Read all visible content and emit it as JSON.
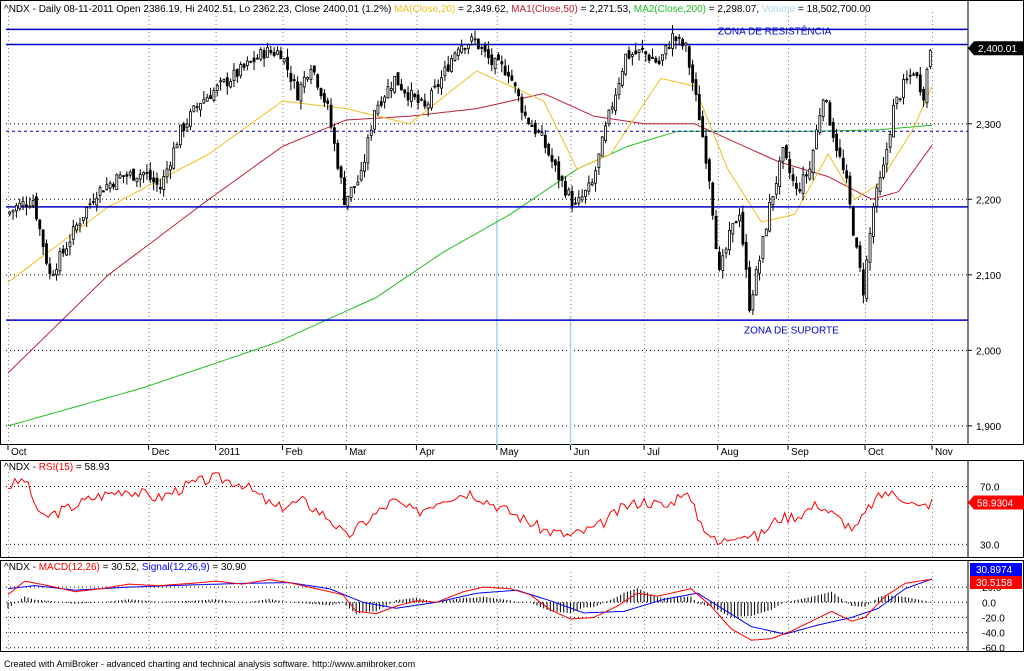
{
  "app": {
    "footer": "Created with AmiBroker - advanced charting and technical analysis software. http://www.amibroker.com"
  },
  "colors": {
    "bg": "#ffffff",
    "border": "#000000",
    "grid": "#000000",
    "vgrid": "#808080",
    "candle_up": "#ffffff",
    "candle_down": "#000000",
    "ma20": "#f0c020",
    "ma50": "#c0203a",
    "ma200": "#20c020",
    "volume": "#a8d8f0",
    "hline": "#0000cc",
    "rsi": "#ff0000",
    "macd": "#ff0000",
    "signal": "#0000ff",
    "hist": "#000000",
    "label_dark": "#000000",
    "label_red": "#ff0000",
    "label_blue": "#0000ff"
  },
  "chart_data": [
    {
      "type": "candlestick",
      "name": "price",
      "title_parts": [
        {
          "text": "^NDX - Daily 08-11-2011 Open 2386.19, Hi 2402.51, Lo 2362.23, Close 2400.01 (1.2%) ",
          "color": "label_dark"
        },
        {
          "text": "MA(Close,20)",
          "color": "ma20"
        },
        {
          "text": " = 2,349.62, ",
          "color": "label_dark"
        },
        {
          "text": "MA1(Close,50)",
          "color": "ma50"
        },
        {
          "text": " = 2,271.53, ",
          "color": "label_dark"
        },
        {
          "text": "MA2(Close,200)",
          "color": "ma200"
        },
        {
          "text": " = 2,298.07, ",
          "color": "label_dark"
        },
        {
          "text": "Volume",
          "color": "volume"
        },
        {
          "text": " = 18,502,700.00",
          "color": "label_dark"
        }
      ],
      "ylim": [
        1880,
        2440
      ],
      "y_ticks": [
        "2,300",
        "2,200",
        "2,100",
        "2,000",
        "1,900"
      ],
      "y_tick_values": [
        2300,
        2200,
        2100,
        2000,
        1900
      ],
      "last_value_label": "2,400.01",
      "last_value": 2400.01,
      "x_labels": [
        "Oct",
        "Dec",
        "2011",
        "Feb",
        "Mar",
        "Apr",
        "May",
        "Jun",
        "Jul",
        "Aug",
        "Sep",
        "Oct",
        "Nov"
      ],
      "x_label_bars": [
        0,
        42,
        62,
        82,
        101,
        122,
        146,
        168,
        190,
        212,
        233,
        256,
        276
      ],
      "bar_count": 276,
      "anchors": [
        [
          0,
          2180
        ],
        [
          3,
          2190
        ],
        [
          8,
          2200
        ],
        [
          13,
          2100
        ],
        [
          17,
          2130
        ],
        [
          21,
          2165
        ],
        [
          27,
          2210
        ],
        [
          34,
          2230
        ],
        [
          41,
          2235
        ],
        [
          46,
          2215
        ],
        [
          52,
          2290
        ],
        [
          58,
          2330
        ],
        [
          64,
          2350
        ],
        [
          70,
          2370
        ],
        [
          77,
          2395
        ],
        [
          82,
          2395
        ],
        [
          87,
          2340
        ],
        [
          91,
          2380
        ],
        [
          96,
          2320
        ],
        [
          101,
          2200
        ],
        [
          106,
          2230
        ],
        [
          110,
          2320
        ],
        [
          116,
          2360
        ],
        [
          120,
          2340
        ],
        [
          125,
          2320
        ],
        [
          130,
          2360
        ],
        [
          135,
          2405
        ],
        [
          140,
          2410
        ],
        [
          145,
          2380
        ],
        [
          150,
          2370
        ],
        [
          155,
          2310
        ],
        [
          160,
          2280
        ],
        [
          165,
          2230
        ],
        [
          170,
          2190
        ],
        [
          175,
          2220
        ],
        [
          180,
          2310
        ],
        [
          185,
          2390
        ],
        [
          190,
          2395
        ],
        [
          195,
          2380
        ],
        [
          199,
          2415
        ],
        [
          203,
          2400
        ],
        [
          207,
          2310
        ],
        [
          210,
          2230
        ],
        [
          213,
          2100
        ],
        [
          216,
          2150
        ],
        [
          219,
          2185
        ],
        [
          222,
          2060
        ],
        [
          225,
          2120
        ],
        [
          228,
          2190
        ],
        [
          232,
          2260
        ],
        [
          236,
          2210
        ],
        [
          240,
          2240
        ],
        [
          244,
          2340
        ],
        [
          248,
          2270
        ],
        [
          251,
          2220
        ],
        [
          254,
          2130
        ],
        [
          256,
          2080
        ],
        [
          259,
          2190
        ],
        [
          262,
          2240
        ],
        [
          265,
          2320
        ],
        [
          268,
          2350
        ],
        [
          271,
          2370
        ],
        [
          274,
          2340
        ],
        [
          276,
          2400
        ]
      ],
      "ma20_anchors": [
        [
          0,
          2090
        ],
        [
          30,
          2190
        ],
        [
          60,
          2260
        ],
        [
          82,
          2330
        ],
        [
          101,
          2320
        ],
        [
          120,
          2300
        ],
        [
          140,
          2370
        ],
        [
          160,
          2330
        ],
        [
          170,
          2240
        ],
        [
          180,
          2260
        ],
        [
          195,
          2360
        ],
        [
          205,
          2350
        ],
        [
          215,
          2240
        ],
        [
          225,
          2170
        ],
        [
          235,
          2180
        ],
        [
          245,
          2260
        ],
        [
          253,
          2200
        ],
        [
          260,
          2220
        ],
        [
          270,
          2290
        ],
        [
          276,
          2349.62
        ]
      ],
      "ma50_anchors": [
        [
          0,
          1970
        ],
        [
          30,
          2100
        ],
        [
          60,
          2200
        ],
        [
          82,
          2270
        ],
        [
          101,
          2305
        ],
        [
          120,
          2310
        ],
        [
          140,
          2320
        ],
        [
          160,
          2340
        ],
        [
          175,
          2310
        ],
        [
          190,
          2300
        ],
        [
          205,
          2300
        ],
        [
          215,
          2280
        ],
        [
          230,
          2250
        ],
        [
          245,
          2230
        ],
        [
          258,
          2200
        ],
        [
          266,
          2210
        ],
        [
          276,
          2271.53
        ]
      ],
      "ma200_anchors": [
        [
          0,
          1900
        ],
        [
          40,
          1950
        ],
        [
          80,
          2010
        ],
        [
          110,
          2070
        ],
        [
          130,
          2130
        ],
        [
          150,
          2180
        ],
        [
          170,
          2240
        ],
        [
          185,
          2270
        ],
        [
          200,
          2290
        ],
        [
          220,
          2290
        ],
        [
          240,
          2290
        ],
        [
          260,
          2292
        ],
        [
          276,
          2298.07
        ]
      ],
      "horizontal_lines": [
        2425,
        2405,
        2290,
        2190,
        2040
      ],
      "hline_styles": [
        "solid",
        "solid",
        "dashed",
        "solid",
        "solid"
      ],
      "annotations": [
        {
          "text": "ZONA DE RESISTÊNCIA",
          "bar": 229,
          "value": 2418
        },
        {
          "text": "ZONA DE SUPORTE",
          "bar": 234,
          "value": 2022
        }
      ],
      "volume_spikes": [
        {
          "bar": 146,
          "value": 2175
        },
        {
          "bar": 168,
          "value": 2045
        }
      ]
    },
    {
      "type": "line",
      "name": "RSI",
      "title_parts": [
        {
          "text": "^NDX - ",
          "color": "label_dark"
        },
        {
          "text": "RSI(15)",
          "color": "rsi"
        },
        {
          "text": " = 58.93",
          "color": "label_dark"
        }
      ],
      "ylim": [
        22,
        80
      ],
      "y_ticks": [
        "70.0",
        "30.0"
      ],
      "y_tick_values": [
        70,
        30
      ],
      "last_value_label": "58.9304",
      "last_value": 58.93,
      "anchors": [
        [
          0,
          70
        ],
        [
          5,
          75
        ],
        [
          10,
          48
        ],
        [
          18,
          55
        ],
        [
          25,
          62
        ],
        [
          35,
          68
        ],
        [
          45,
          62
        ],
        [
          55,
          72
        ],
        [
          62,
          76
        ],
        [
          70,
          72
        ],
        [
          80,
          55
        ],
        [
          88,
          60
        ],
        [
          96,
          48
        ],
        [
          101,
          35
        ],
        [
          108,
          48
        ],
        [
          115,
          60
        ],
        [
          122,
          52
        ],
        [
          130,
          62
        ],
        [
          138,
          66
        ],
        [
          145,
          58
        ],
        [
          152,
          50
        ],
        [
          160,
          40
        ],
        [
          168,
          36
        ],
        [
          176,
          42
        ],
        [
          184,
          56
        ],
        [
          190,
          60
        ],
        [
          197,
          56
        ],
        [
          202,
          68
        ],
        [
          207,
          45
        ],
        [
          212,
          30
        ],
        [
          218,
          38
        ],
        [
          224,
          35
        ],
        [
          230,
          48
        ],
        [
          236,
          50
        ],
        [
          242,
          58
        ],
        [
          248,
          48
        ],
        [
          253,
          40
        ],
        [
          258,
          58
        ],
        [
          262,
          66
        ],
        [
          268,
          62
        ],
        [
          272,
          55
        ],
        [
          276,
          58.93
        ]
      ]
    },
    {
      "type": "line",
      "name": "MACD",
      "title_parts": [
        {
          "text": "^NDX - ",
          "color": "label_dark"
        },
        {
          "text": "MACD(12,26)",
          "color": "macd"
        },
        {
          "text": " = 30.52, ",
          "color": "label_dark"
        },
        {
          "text": "Signal(12,26,9)",
          "color": "signal"
        },
        {
          "text": " = 30.90",
          "color": "label_dark"
        }
      ],
      "ylim": [
        -63,
        40
      ],
      "y_ticks": [
        "20.0",
        "0.0",
        "-20.0",
        "-40.0",
        "-60.0"
      ],
      "y_tick_values": [
        20,
        0,
        -20,
        -40,
        -60
      ],
      "last_value_label_signal": "30.8974",
      "last_value_label_macd": "30.5158",
      "macd_anchors": [
        [
          0,
          10
        ],
        [
          5,
          28
        ],
        [
          12,
          22
        ],
        [
          20,
          14
        ],
        [
          28,
          18
        ],
        [
          36,
          24
        ],
        [
          45,
          22
        ],
        [
          55,
          25
        ],
        [
          62,
          28
        ],
        [
          70,
          24
        ],
        [
          78,
          30
        ],
        [
          84,
          26
        ],
        [
          92,
          18
        ],
        [
          100,
          10
        ],
        [
          104,
          -12
        ],
        [
          110,
          -15
        ],
        [
          116,
          -5
        ],
        [
          122,
          2
        ],
        [
          128,
          0
        ],
        [
          136,
          14
        ],
        [
          142,
          20
        ],
        [
          150,
          18
        ],
        [
          156,
          10
        ],
        [
          162,
          -10
        ],
        [
          168,
          -22
        ],
        [
          175,
          -20
        ],
        [
          182,
          -5
        ],
        [
          188,
          12
        ],
        [
          194,
          8
        ],
        [
          200,
          14
        ],
        [
          204,
          18
        ],
        [
          210,
          -5
        ],
        [
          216,
          -35
        ],
        [
          222,
          -50
        ],
        [
          228,
          -48
        ],
        [
          234,
          -38
        ],
        [
          240,
          -25
        ],
        [
          246,
          -12
        ],
        [
          252,
          -25
        ],
        [
          256,
          -20
        ],
        [
          262,
          8
        ],
        [
          268,
          25
        ],
        [
          272,
          28
        ],
        [
          276,
          30.52
        ]
      ],
      "signal_anchors": [
        [
          0,
          18
        ],
        [
          8,
          22
        ],
        [
          20,
          16
        ],
        [
          36,
          20
        ],
        [
          55,
          23
        ],
        [
          70,
          25
        ],
        [
          84,
          26
        ],
        [
          96,
          18
        ],
        [
          106,
          0
        ],
        [
          116,
          -8
        ],
        [
          128,
          0
        ],
        [
          140,
          12
        ],
        [
          152,
          16
        ],
        [
          162,
          2
        ],
        [
          172,
          -14
        ],
        [
          184,
          -12
        ],
        [
          196,
          4
        ],
        [
          206,
          12
        ],
        [
          214,
          -10
        ],
        [
          222,
          -32
        ],
        [
          232,
          -42
        ],
        [
          242,
          -30
        ],
        [
          252,
          -20
        ],
        [
          260,
          -8
        ],
        [
          268,
          18
        ],
        [
          276,
          30.9
        ]
      ]
    }
  ]
}
